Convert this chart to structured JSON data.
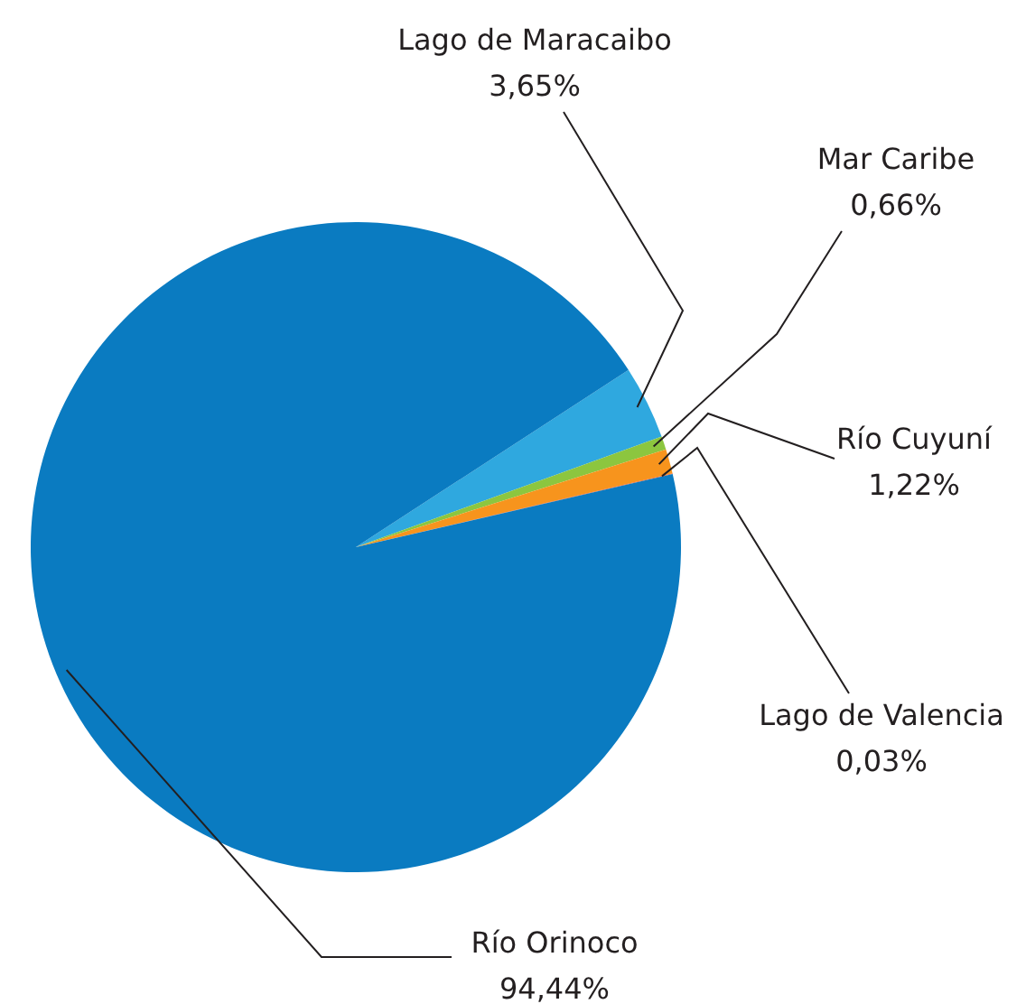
{
  "chart_data": {
    "type": "pie",
    "categories": [
      "Lago de Maracaibo",
      "Mar Caribe",
      "Río Cuyuní",
      "Lago de Valencia",
      "Río Orinoco"
    ],
    "values": [
      3.65,
      0.66,
      1.22,
      0.03,
      94.44
    ],
    "value_labels": [
      "3,65%",
      "0,66%",
      "1,22%",
      "0,03%",
      "94,44%"
    ],
    "colors": [
      "#2fa8df",
      "#8cc63f",
      "#f7941d",
      "#f15a24",
      "#0a7bc1"
    ],
    "legend": false
  }
}
